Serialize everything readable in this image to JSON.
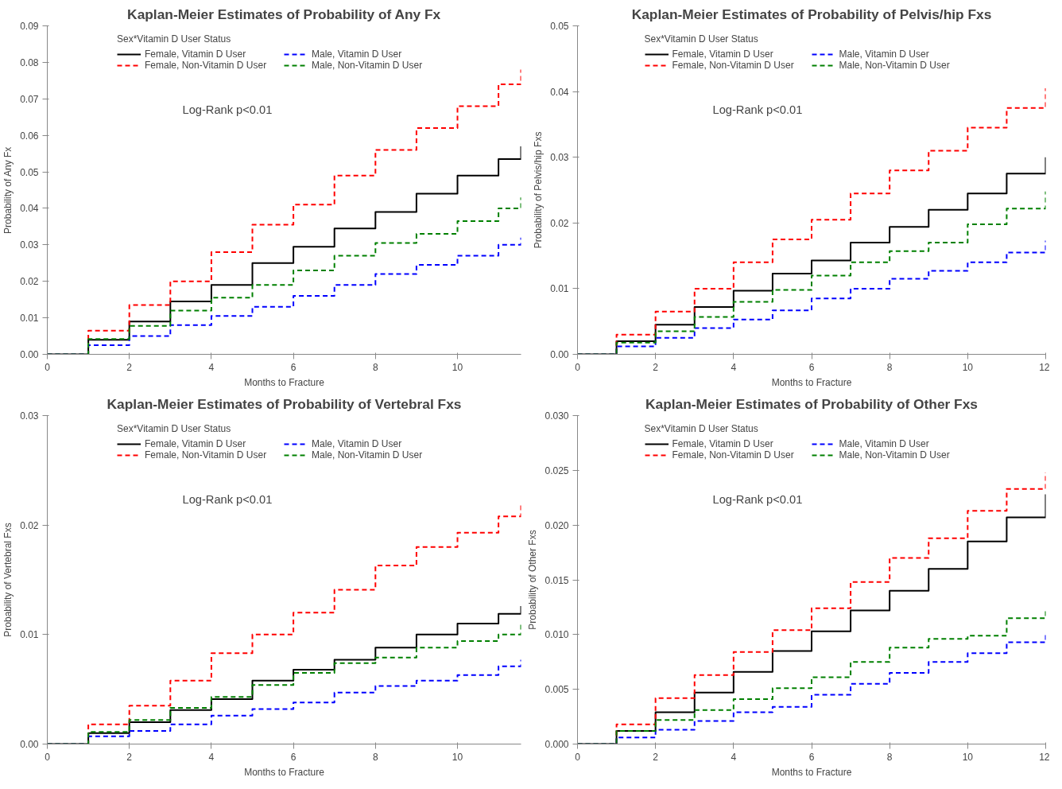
{
  "chart_data": [
    {
      "type": "step",
      "title": "Kaplan-Meier Estimates of Probability of Any Fx",
      "xlabel": "Months to Fracture",
      "ylabel": "Probability of Any Fx",
      "legend_title": "Sex*Vitamin D User Status",
      "legend": "top",
      "grid": false,
      "annotations": [
        "Log-Rank p<0.01"
      ],
      "x": [
        0,
        1,
        2,
        3,
        4,
        5,
        6,
        7,
        8,
        9,
        10,
        11,
        11.55
      ],
      "xlim": [
        0,
        11.55
      ],
      "xticks": [
        0,
        2,
        4,
        6,
        8,
        10
      ],
      "ylim": [
        0,
        0.09
      ],
      "yticks": [
        {
          "value": 0,
          "label": "0.00"
        },
        {
          "value": 0.01,
          "label": "0.01"
        },
        {
          "value": 0.02,
          "label": "0.02"
        },
        {
          "value": 0.03,
          "label": "0.03"
        },
        {
          "value": 0.04,
          "label": "0.04"
        },
        {
          "value": 0.05,
          "label": "0.05"
        },
        {
          "value": 0.06,
          "label": "0.06"
        },
        {
          "value": 0.07,
          "label": "0.07"
        },
        {
          "value": 0.08,
          "label": "0.08"
        },
        {
          "value": 0.09,
          "label": "0.09"
        }
      ],
      "series": [
        {
          "name": "Female, Vitamin D User",
          "color": "#000000",
          "line_style": "solid",
          "values": [
            0,
            0.004,
            0.009,
            0.0145,
            0.019,
            0.025,
            0.0295,
            0.0345,
            0.039,
            0.044,
            0.049,
            0.0535,
            0.057
          ]
        },
        {
          "name": "Female, Non-Vitamin D User",
          "color": "#ff0000",
          "line_style": "dashed",
          "values": [
            0,
            0.0065,
            0.0135,
            0.02,
            0.028,
            0.0355,
            0.041,
            0.049,
            0.056,
            0.062,
            0.068,
            0.074,
            0.078
          ]
        },
        {
          "name": "Male, Vitamin D User",
          "color": "#0000ff",
          "line_style": "dashed",
          "values": [
            0,
            0.0025,
            0.005,
            0.008,
            0.0105,
            0.013,
            0.016,
            0.019,
            0.022,
            0.0245,
            0.027,
            0.03,
            0.032
          ]
        },
        {
          "name": "Male, Non-Vitamin D User",
          "color": "#008000",
          "line_style": "dashed",
          "values": [
            0,
            0.0042,
            0.0078,
            0.012,
            0.0155,
            0.019,
            0.023,
            0.027,
            0.0305,
            0.033,
            0.0365,
            0.04,
            0.043
          ]
        }
      ]
    },
    {
      "type": "step",
      "title": "Kaplan-Meier Estimates of Probability of Pelvis/hip Fxs",
      "xlabel": "Months to Fracture",
      "ylabel": "Probability of Pelvis/hip Fxs",
      "legend_title": "Sex*Vitamin D User Status",
      "legend": "top",
      "grid": false,
      "annotations": [
        "Log-Rank p<0.01"
      ],
      "x": [
        0,
        1,
        2,
        3,
        4,
        5,
        6,
        7,
        8,
        9,
        10,
        11,
        12
      ],
      "xlim": [
        0,
        12
      ],
      "xticks": [
        0,
        2,
        4,
        6,
        8,
        10,
        12
      ],
      "ylim": [
        0,
        0.05
      ],
      "yticks": [
        {
          "value": 0,
          "label": "0.00"
        },
        {
          "value": 0.01,
          "label": "0.01"
        },
        {
          "value": 0.02,
          "label": "0.02"
        },
        {
          "value": 0.03,
          "label": "0.03"
        },
        {
          "value": 0.04,
          "label": "0.04"
        },
        {
          "value": 0.05,
          "label": "0.05"
        }
      ],
      "series": [
        {
          "name": "Female, Vitamin D User",
          "color": "#000000",
          "line_style": "solid",
          "values": [
            0,
            0.002,
            0.0045,
            0.0072,
            0.0097,
            0.0123,
            0.0143,
            0.017,
            0.0194,
            0.022,
            0.0245,
            0.0275,
            0.03
          ]
        },
        {
          "name": "Female, Non-Vitamin D User",
          "color": "#ff0000",
          "line_style": "dashed",
          "values": [
            0,
            0.003,
            0.0065,
            0.01,
            0.014,
            0.0175,
            0.0205,
            0.0245,
            0.028,
            0.031,
            0.0345,
            0.0375,
            0.0405
          ]
        },
        {
          "name": "Male, Vitamin D User",
          "color": "#0000ff",
          "line_style": "dashed",
          "values": [
            0,
            0.0012,
            0.0025,
            0.004,
            0.0053,
            0.0067,
            0.0085,
            0.01,
            0.0115,
            0.0127,
            0.014,
            0.0155,
            0.0173
          ]
        },
        {
          "name": "Male, Non-Vitamin D User",
          "color": "#008000",
          "line_style": "dashed",
          "values": [
            0,
            0.0018,
            0.0035,
            0.0057,
            0.008,
            0.0098,
            0.012,
            0.014,
            0.0157,
            0.017,
            0.0198,
            0.0222,
            0.0248
          ]
        }
      ]
    },
    {
      "type": "step",
      "title": "Kaplan-Meier Estimates of Probability of Vertebral Fxs",
      "xlabel": "Months to Fracture",
      "ylabel": "Probability of Vertebral Fxs",
      "legend_title": "Sex*Vitamin D User Status",
      "legend": "top",
      "grid": false,
      "annotations": [
        "Log-Rank p<0.01"
      ],
      "x": [
        0,
        1,
        2,
        3,
        4,
        5,
        6,
        7,
        8,
        9,
        10,
        11,
        11.55
      ],
      "xlim": [
        0,
        11.55
      ],
      "xticks": [
        0,
        2,
        4,
        6,
        8,
        10
      ],
      "ylim": [
        0,
        0.03
      ],
      "yticks": [
        {
          "value": 0,
          "label": "0.00"
        },
        {
          "value": 0.01,
          "label": "0.01"
        },
        {
          "value": 0.02,
          "label": "0.02"
        },
        {
          "value": 0.03,
          "label": "0.03"
        }
      ],
      "series": [
        {
          "name": "Female, Vitamin D User",
          "color": "#000000",
          "line_style": "solid",
          "values": [
            0,
            0.001,
            0.002,
            0.0031,
            0.0041,
            0.0058,
            0.0068,
            0.0077,
            0.0088,
            0.01,
            0.011,
            0.0119,
            0.0126
          ]
        },
        {
          "name": "Female, Non-Vitamin D User",
          "color": "#ff0000",
          "line_style": "dashed",
          "values": [
            0,
            0.0018,
            0.0035,
            0.0058,
            0.0083,
            0.01,
            0.012,
            0.0141,
            0.0163,
            0.018,
            0.0193,
            0.0208,
            0.0219
          ]
        },
        {
          "name": "Male, Vitamin D User",
          "color": "#0000ff",
          "line_style": "dashed",
          "values": [
            0,
            0.0007,
            0.0012,
            0.0018,
            0.0026,
            0.0032,
            0.0038,
            0.0047,
            0.0053,
            0.0058,
            0.0063,
            0.0071,
            0.0077
          ]
        },
        {
          "name": "Male, Non-Vitamin D User",
          "color": "#008000",
          "line_style": "dashed",
          "values": [
            0,
            0.0011,
            0.0022,
            0.0033,
            0.0043,
            0.0054,
            0.0065,
            0.0074,
            0.0079,
            0.0088,
            0.0094,
            0.01,
            0.0111
          ]
        }
      ]
    },
    {
      "type": "step",
      "title": "Kaplan-Meier Estimates of Probability of Other Fxs",
      "xlabel": "Months to Fracture",
      "ylabel": "Probability of Other Fxs",
      "legend_title": "Sex*Vitamin D User Status",
      "legend": "top",
      "grid": false,
      "annotations": [
        "Log-Rank p<0.01"
      ],
      "x": [
        0,
        1,
        2,
        3,
        4,
        5,
        6,
        7,
        8,
        9,
        10,
        11,
        12
      ],
      "xlim": [
        0,
        12
      ],
      "xticks": [
        0,
        2,
        4,
        6,
        8,
        10,
        12
      ],
      "ylim": [
        0,
        0.03
      ],
      "yticks": [
        {
          "value": 0,
          "label": "0.000"
        },
        {
          "value": 0.005,
          "label": "0.005"
        },
        {
          "value": 0.01,
          "label": "0.010"
        },
        {
          "value": 0.015,
          "label": "0.015"
        },
        {
          "value": 0.02,
          "label": "0.020"
        },
        {
          "value": 0.025,
          "label": "0.025"
        },
        {
          "value": 0.03,
          "label": "0.030"
        }
      ],
      "series": [
        {
          "name": "Female, Vitamin D User",
          "color": "#000000",
          "line_style": "solid",
          "values": [
            0,
            0.0012,
            0.0029,
            0.0047,
            0.0066,
            0.0085,
            0.0103,
            0.0122,
            0.014,
            0.016,
            0.0185,
            0.0207,
            0.0228
          ]
        },
        {
          "name": "Female, Non-Vitamin D User",
          "color": "#ff0000",
          "line_style": "dashed",
          "values": [
            0,
            0.0018,
            0.0042,
            0.0063,
            0.0084,
            0.0104,
            0.0124,
            0.0148,
            0.017,
            0.0188,
            0.0213,
            0.0233,
            0.0248
          ]
        },
        {
          "name": "Male, Vitamin D User",
          "color": "#0000ff",
          "line_style": "dashed",
          "values": [
            0,
            0.0006,
            0.0013,
            0.0021,
            0.0029,
            0.0034,
            0.0045,
            0.0055,
            0.0065,
            0.0075,
            0.0083,
            0.0093,
            0.0102
          ]
        },
        {
          "name": "Male, Non-Vitamin D User",
          "color": "#008000",
          "line_style": "dashed",
          "values": [
            0,
            0.0012,
            0.0022,
            0.0031,
            0.0041,
            0.0051,
            0.0061,
            0.0075,
            0.0088,
            0.0096,
            0.0099,
            0.0115,
            0.0124
          ]
        }
      ]
    }
  ]
}
